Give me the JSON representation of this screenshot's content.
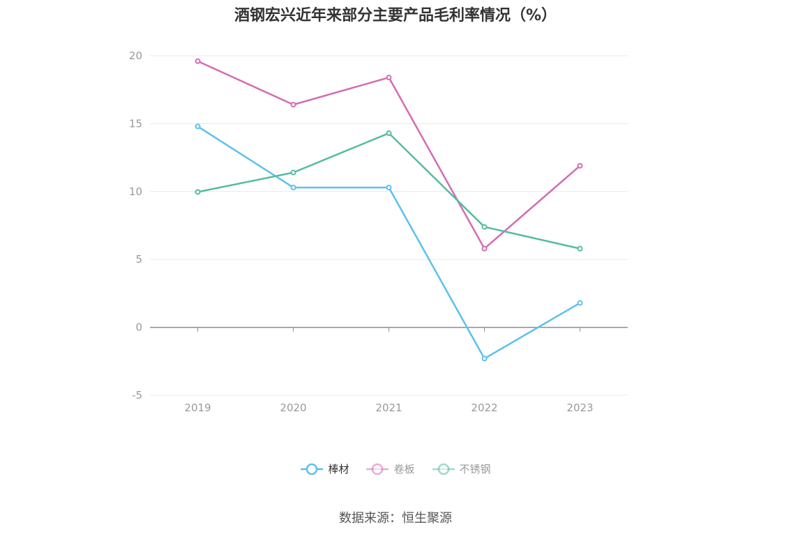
{
  "chart_data": {
    "type": "line",
    "title": "酒钢宏兴近年来部分主要产品毛利率情况（%）",
    "categories": [
      "2019",
      "2020",
      "2021",
      "2022",
      "2023"
    ],
    "series": [
      {
        "name": "棒材",
        "color": "#5bc0f0",
        "values": [
          14.8,
          10.3,
          10.3,
          -2.3,
          1.8
        ]
      },
      {
        "name": "卷板",
        "color": "#d46bb4",
        "values": [
          19.6,
          16.4,
          18.4,
          5.8,
          11.9
        ]
      },
      {
        "name": "不锈钢",
        "color": "#56bba0",
        "values": [
          9.97,
          11.4,
          14.3,
          7.4,
          5.8
        ]
      }
    ],
    "ylim": [
      -5,
      20
    ],
    "yticks": [
      -5,
      0,
      5,
      10,
      15,
      20
    ],
    "ytick_labels": [
      "-5",
      "0",
      "5",
      "10",
      "15",
      "20"
    ],
    "grid": true,
    "legend_position": "bottom",
    "legend_active": "棒材",
    "source": "数据来源：恒生聚源"
  }
}
